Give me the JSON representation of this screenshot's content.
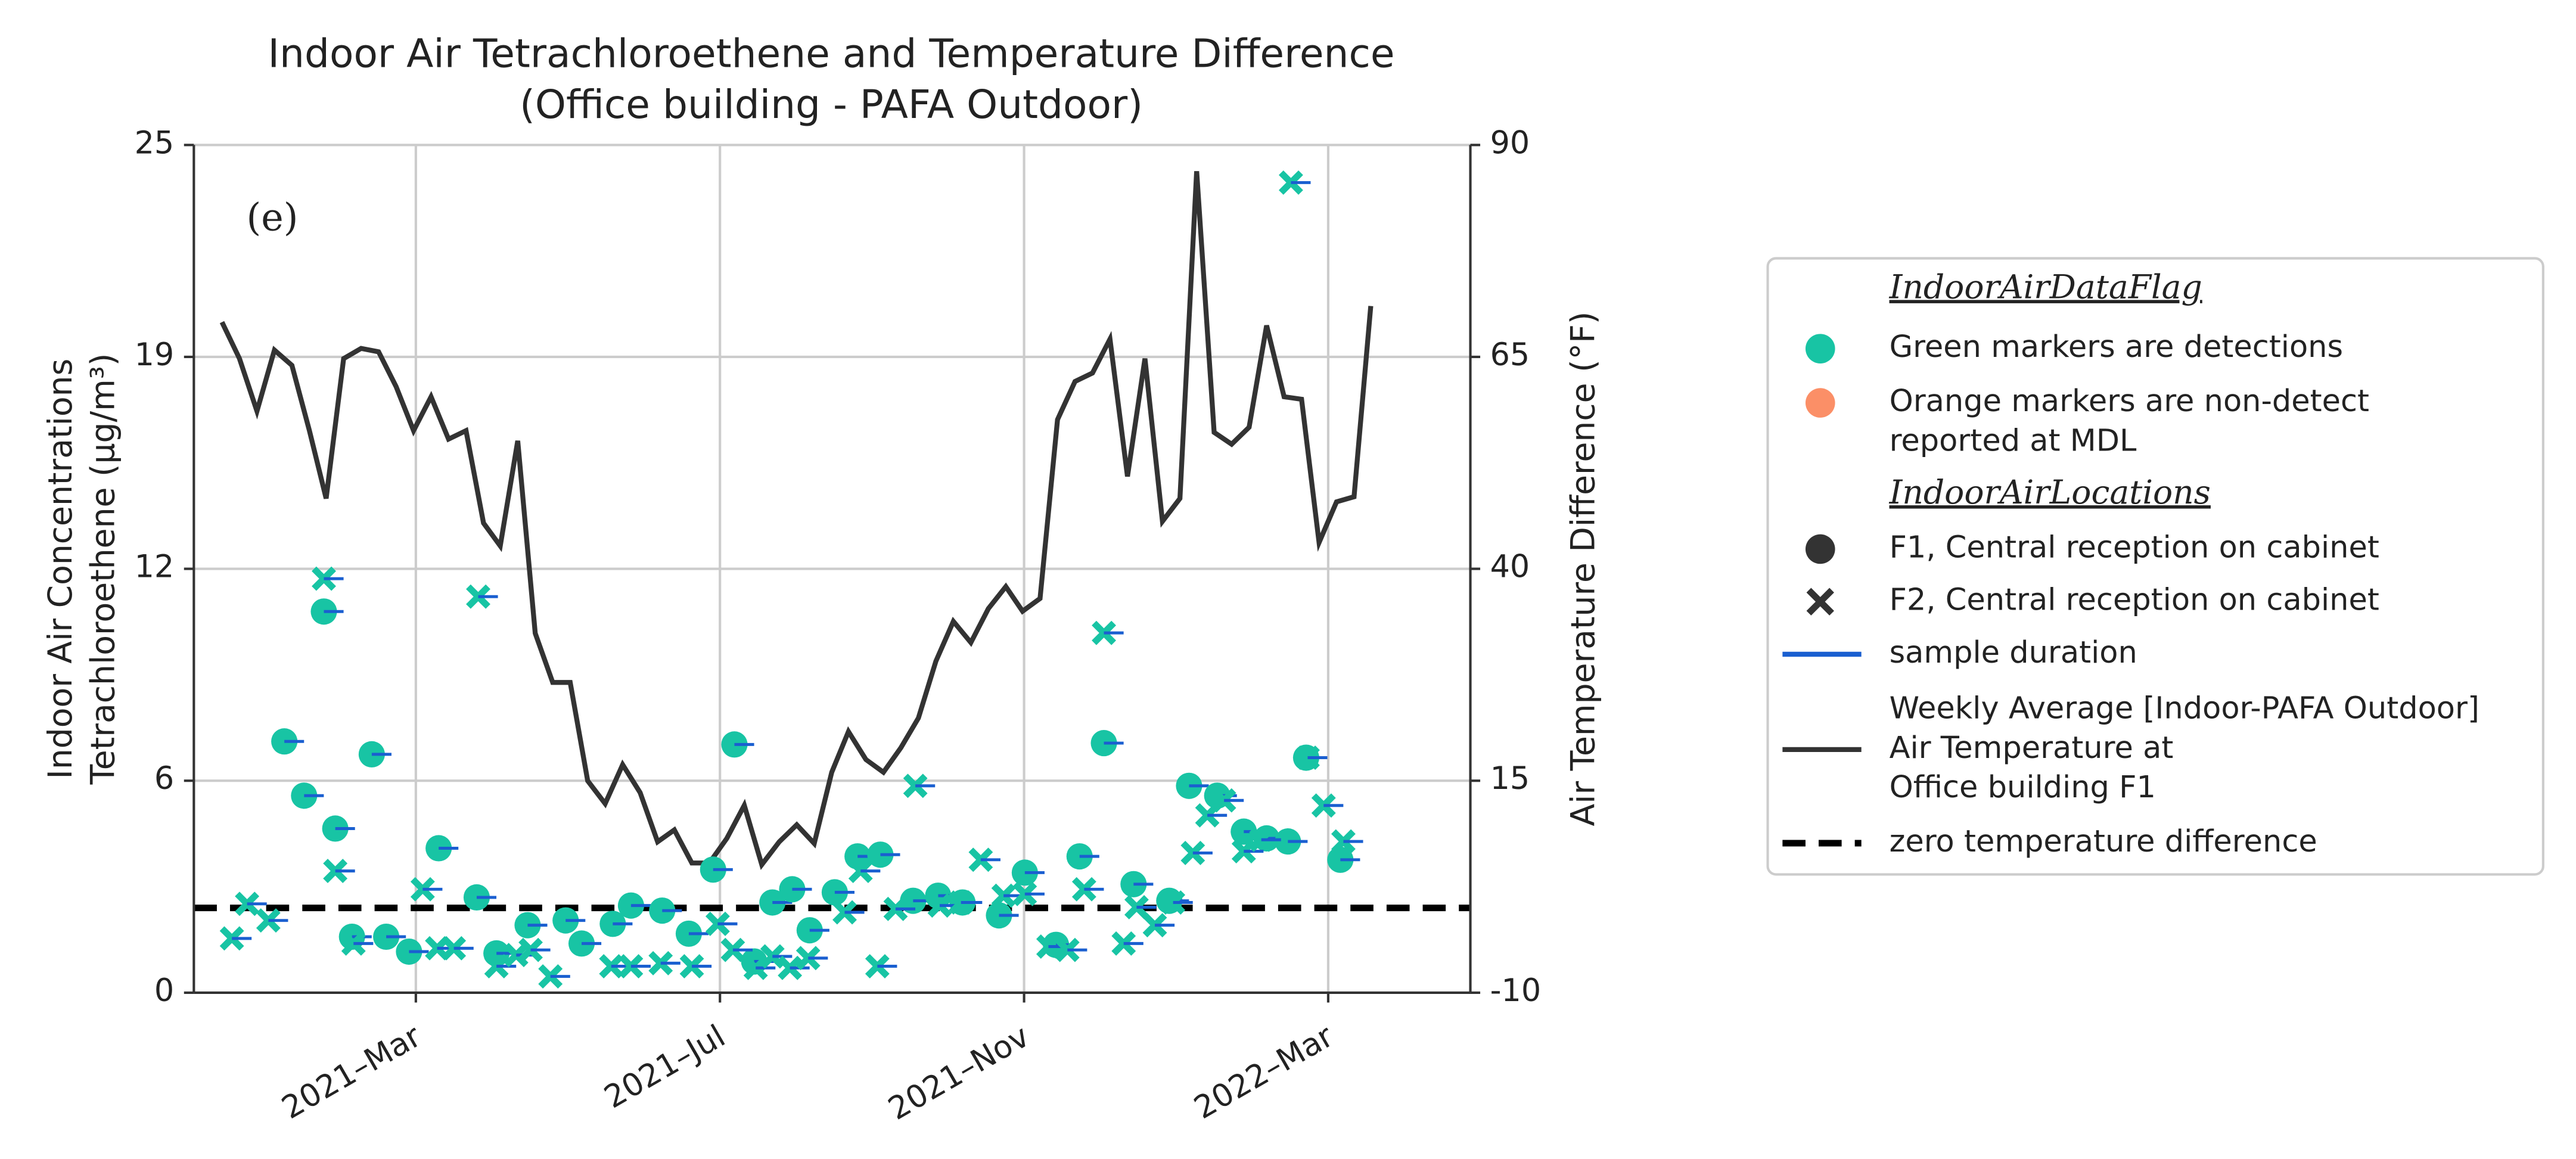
{
  "chart_data": {
    "type": "scatter",
    "title": "Indoor Air Tetrachloroethene and Temperature Difference",
    "subtitle": "(Office building - PAFA Outdoor)",
    "annotation": "(e)",
    "ylabel": [
      "Indoor Air Concentrations",
      "Tetrachloroethene (µg/m³)"
    ],
    "y2label": "Air Temperature Difference (°F)",
    "xlim": [
      -0.92,
      15.87
    ],
    "xticks": [
      {
        "value": 2,
        "label": "2021–Mar"
      },
      {
        "value": 6,
        "label": "2021–Jul"
      },
      {
        "value": 10,
        "label": "2021–Nov"
      },
      {
        "value": 14,
        "label": "2022–Mar"
      }
    ],
    "ylim": [
      0,
      25
    ],
    "yticks": [
      0,
      {
        "value": 6.25,
        "label": "6"
      },
      {
        "value": 12.5,
        "label": "12"
      },
      {
        "value": 18.75,
        "label": "19"
      },
      25
    ],
    "y2lim": [
      -10,
      90
    ],
    "y2ticks": [
      -10,
      15,
      40,
      65,
      90
    ],
    "grid": true,
    "series": [
      {
        "name": "F1, Central reception on cabinet",
        "marker": "circle",
        "color": "#18c4a4",
        "x": [
          0.27,
          0.53,
          0.79,
          0.94,
          1.16,
          1.42,
          1.61,
          1.91,
          2.3,
          2.8,
          3.06,
          3.47,
          3.97,
          4.18,
          4.59,
          4.83,
          5.24,
          5.59,
          5.91,
          6.19,
          6.45,
          6.69,
          6.95,
          7.18,
          7.51,
          7.81,
          8.11,
          8.54,
          8.87,
          9.19,
          9.67,
          10.01,
          10.42,
          10.73,
          11.05,
          11.44,
          11.91,
          12.17,
          12.54,
          12.89,
          13.19,
          13.47,
          13.71,
          14.16
        ],
        "values": [
          7.41,
          5.81,
          11.24,
          4.84,
          1.65,
          7.03,
          1.65,
          1.21,
          4.26,
          2.81,
          1.16,
          1.99,
          2.13,
          1.45,
          2.03,
          2.57,
          2.42,
          1.74,
          3.63,
          7.32,
          0.92,
          2.66,
          3.05,
          1.84,
          2.96,
          4.02,
          4.07,
          2.71,
          2.86,
          2.66,
          2.28,
          3.54,
          1.41,
          4.02,
          7.36,
          3.2,
          2.71,
          6.1,
          5.81,
          4.75,
          4.55,
          4.46,
          6.93,
          3.92
        ]
      },
      {
        "name": "F2, Central reception on cabinet",
        "marker": "x",
        "color": "#18c4a4",
        "x": [
          -0.42,
          -0.22,
          0.06,
          0.79,
          0.94,
          1.18,
          2.09,
          2.28,
          2.5,
          2.82,
          3.06,
          3.32,
          3.51,
          3.77,
          4.57,
          4.83,
          5.22,
          5.63,
          5.97,
          6.17,
          6.47,
          6.69,
          6.92,
          7.16,
          7.64,
          7.85,
          8.07,
          8.31,
          8.57,
          8.89,
          9.17,
          9.43,
          9.73,
          10.01,
          10.32,
          10.57,
          10.79,
          11.05,
          11.31,
          11.48,
          11.72,
          11.96,
          12.22,
          12.41,
          12.63,
          12.89,
          13.12,
          13.51,
          13.73,
          13.94,
          14.2
        ],
        "values": [
          1.6,
          2.62,
          2.13,
          12.21,
          3.59,
          1.45,
          3.05,
          1.31,
          1.31,
          11.68,
          0.78,
          1.11,
          1.26,
          0.48,
          0.78,
          0.78,
          0.87,
          0.78,
          2.03,
          1.26,
          0.73,
          1.07,
          0.73,
          1.02,
          2.37,
          3.59,
          0.78,
          2.47,
          6.1,
          2.57,
          2.66,
          3.92,
          2.86,
          2.91,
          1.36,
          1.26,
          3.05,
          10.61,
          1.45,
          2.52,
          1.99,
          2.66,
          4.12,
          5.23,
          5.67,
          4.17,
          4.51,
          23.89,
          6.93,
          5.52,
          4.46
        ]
      },
      {
        "name": [
          "Weekly Average [Indoor-PAFA Outdoor]",
          "Air Temperature at",
          "Office building F1"
        ],
        "type": "line",
        "axis": "y2",
        "color": "#333333",
        "x": [
          -0.55,
          -0.32,
          -0.09,
          0.14,
          0.37,
          0.6,
          0.82,
          1.05,
          1.28,
          1.51,
          1.74,
          1.97,
          2.2,
          2.43,
          2.66,
          2.89,
          3.11,
          3.34,
          3.57,
          3.8,
          4.03,
          4.26,
          4.49,
          4.72,
          4.95,
          5.18,
          5.4,
          5.63,
          5.86,
          6.09,
          6.32,
          6.55,
          6.78,
          7.01,
          7.24,
          7.47,
          7.69,
          7.92,
          8.15,
          8.38,
          8.61,
          8.84,
          9.07,
          9.3,
          9.53,
          9.76,
          9.98,
          10.21,
          10.44,
          10.67,
          10.9,
          11.13,
          11.36,
          11.59,
          11.82,
          12.05,
          12.27,
          12.5,
          12.73,
          12.96,
          13.19,
          13.42,
          13.65,
          13.88,
          14.11,
          14.34,
          14.56
        ],
        "values": [
          69.1,
          64.8,
          58.6,
          65.8,
          64.0,
          56.3,
          48.3,
          64.8,
          66.0,
          65.6,
          61.5,
          56.3,
          60.3,
          55.3,
          56.3,
          45.4,
          42.7,
          55.1,
          32.4,
          26.6,
          26.6,
          15.0,
          12.3,
          16.9,
          13.6,
          7.8,
          9.2,
          5.3,
          5.3,
          8.2,
          12.1,
          5.1,
          7.8,
          9.8,
          7.6,
          16.0,
          20.8,
          17.5,
          16.0,
          18.9,
          22.4,
          29.1,
          33.8,
          31.3,
          35.3,
          37.9,
          35.0,
          36.5,
          57.6,
          62.1,
          63.1,
          67.1,
          50.9,
          64.8,
          45.6,
          48.3,
          86.9,
          56.1,
          54.7,
          56.7,
          68.7,
          60.3,
          60.0,
          43.1,
          47.9,
          48.5,
          71.0
        ]
      }
    ],
    "reference_line": {
      "name": "zero temperature difference",
      "axis": "y2",
      "value": 0,
      "color": "#000000",
      "style": "dashed"
    },
    "sample_duration": {
      "name": "sample duration",
      "color": "#1a5fd0"
    },
    "legend": {
      "position": "right",
      "flag_title": "IndoorAirDataFlag",
      "flags": [
        {
          "label": [
            "Green markers are detections"
          ],
          "color": "#18c4a4",
          "text_color": "#1a9a1a"
        },
        {
          "label": [
            "Orange markers are non-detect",
            "reported at MDL"
          ],
          "color": "#fb8f67",
          "text_color": "#ffa500"
        }
      ],
      "location_title": "IndoorAirLocations"
    }
  }
}
